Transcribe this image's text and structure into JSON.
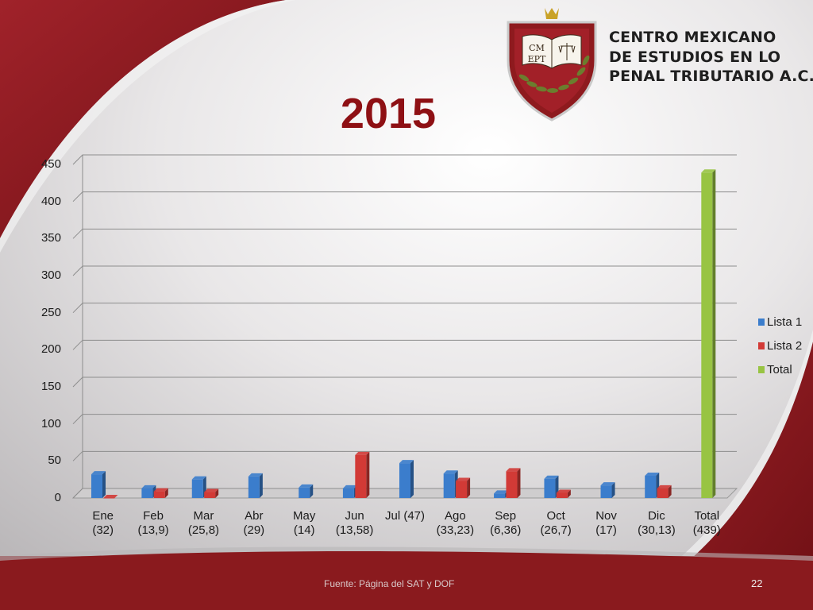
{
  "org": {
    "logo_text_line1": "CM",
    "logo_text_line2": "EPT",
    "name_line1": "CENTRO MEXICANO",
    "name_line2": "DE ESTUDIOS EN LO",
    "name_line3": "PENAL TRIBUTARIO A.C."
  },
  "slide": {
    "title": "2015",
    "footer_source": "Fuente: Página del SAT y DOF",
    "page_number": "22"
  },
  "colors": {
    "lista1": "#3b7dcc",
    "lista2": "#d23a36",
    "total": "#98c443",
    "title": "#8e1014",
    "frame_red": "#8e1a1e"
  },
  "chart_data": {
    "type": "bar",
    "title": "2015",
    "categories": [
      "Ene",
      "Feb",
      "Mar",
      "Abr",
      "May",
      "Jun",
      "Jul",
      "Ago",
      "Sep",
      "Oct",
      "Nov",
      "Dic",
      "Total"
    ],
    "category_sublabels": [
      "(32)",
      "(13,9)",
      "(25,8)",
      "(29)",
      "(14)",
      "(13,58)",
      "",
      "(33,23)",
      "(6,36)",
      "(26,7)",
      "(17)",
      "(30,13)",
      "(439)"
    ],
    "category_labels_inline": [
      "Ene",
      "Feb",
      "Mar",
      "Abr",
      "May",
      "Jun",
      "Jul (47)",
      "Ago",
      "Sep",
      "Oct",
      "Nov",
      "Dic",
      "Total"
    ],
    "series": [
      {
        "name": "Lista 1",
        "values": [
          32,
          13,
          25,
          29,
          14,
          13,
          47,
          33,
          6,
          26,
          17,
          30,
          null
        ]
      },
      {
        "name": "Lista 2",
        "values": [
          0,
          9,
          8,
          null,
          null,
          58,
          null,
          23,
          36,
          7,
          null,
          13,
          null
        ]
      },
      {
        "name": "Total",
        "values": [
          null,
          null,
          null,
          null,
          null,
          null,
          null,
          null,
          null,
          null,
          null,
          null,
          439
        ]
      }
    ],
    "ylim": [
      0,
      450
    ],
    "yticks": [
      "0",
      "50",
      "100",
      "150",
      "200",
      "250",
      "300",
      "350",
      "400",
      "450"
    ],
    "grid": true,
    "legend": "right"
  }
}
